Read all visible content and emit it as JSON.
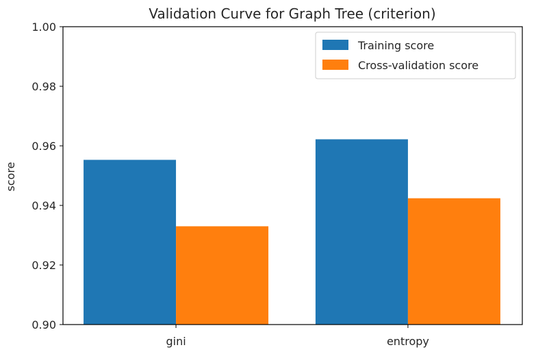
{
  "chart_data": {
    "type": "bar",
    "title": "Validation Curve for Graph Tree (criterion)",
    "xlabel": "",
    "ylabel": "score",
    "categories": [
      "gini",
      "entropy"
    ],
    "series": [
      {
        "name": "Training score",
        "values": [
          0.9553,
          0.9622
        ],
        "color": "#1f77b4"
      },
      {
        "name": "Cross-validation score",
        "values": [
          0.933,
          0.9424
        ],
        "color": "#ff7f0e"
      }
    ],
    "ylim": [
      0.9,
      1.0
    ],
    "yticks": [
      "0.90",
      "0.92",
      "0.94",
      "0.96",
      "0.98",
      "1.00"
    ],
    "grid": false,
    "legend_position": "top-right"
  }
}
